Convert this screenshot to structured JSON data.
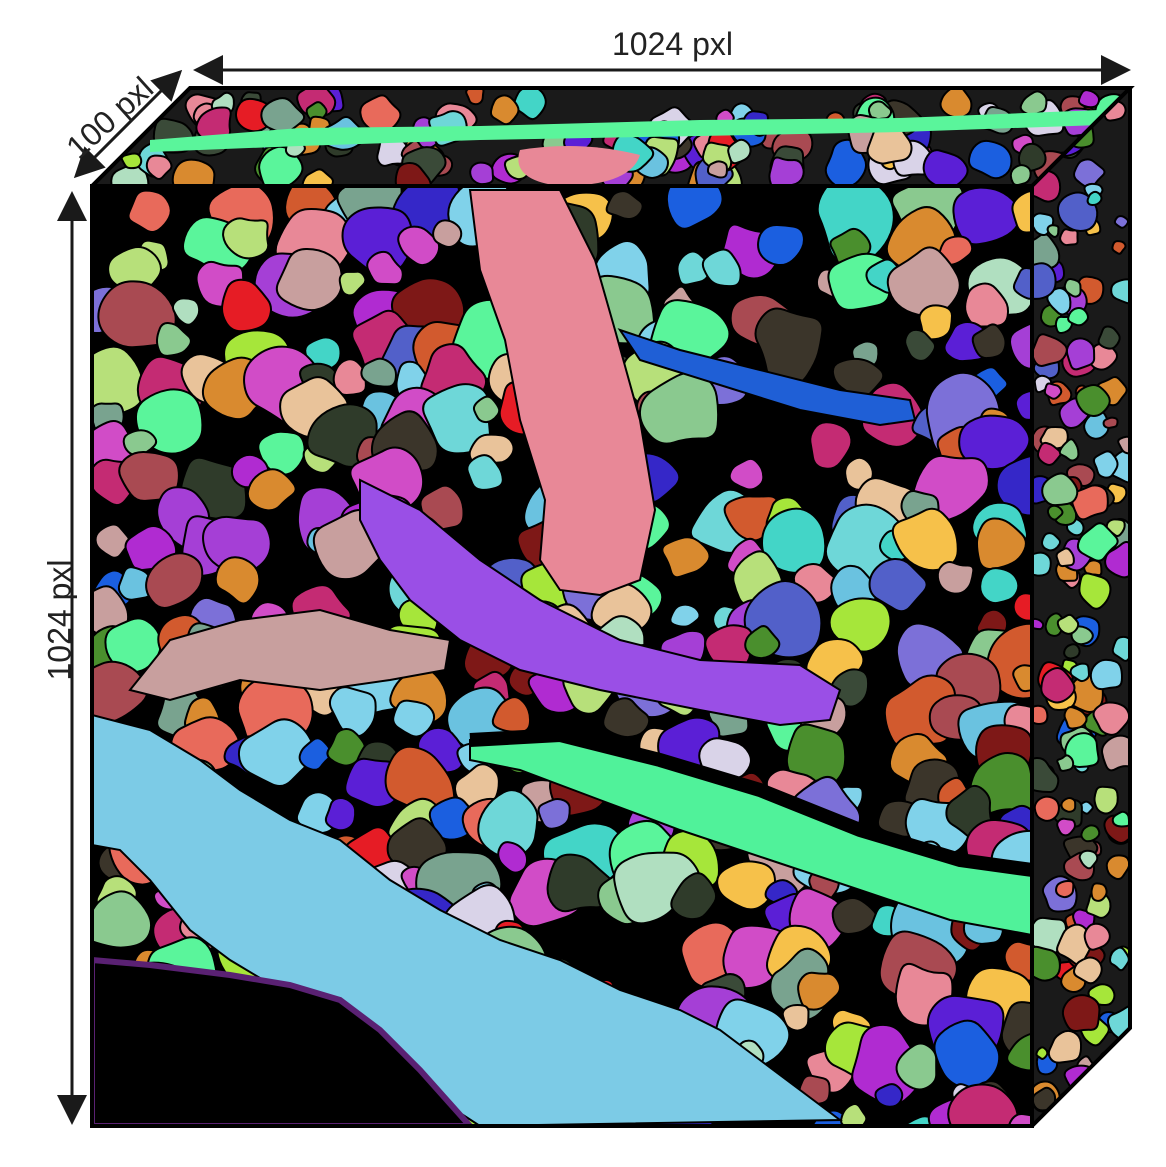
{
  "dimensions": {
    "width_label": "1024 pxl",
    "height_label": "1024 pxl",
    "depth_label": "100 pxl"
  },
  "colors": {
    "background_gap": "#000000",
    "outline": "#000000",
    "arrow": "#1a1a1a"
  },
  "figure": {
    "description_free": true,
    "palette": [
      "#5b1fd6",
      "#b7e07a",
      "#79a38f",
      "#2f3b2a",
      "#e9c39a",
      "#c42b73",
      "#d9d3e8",
      "#6ac2e0",
      "#e88897",
      "#a94a52",
      "#4a8f2d",
      "#e86a5b",
      "#d25a2e",
      "#8ac98f",
      "#1b5fe0",
      "#3b352a",
      "#7e1817",
      "#7c70d8",
      "#a53fd6",
      "#6ed7d8",
      "#5af59b",
      "#c89f9e",
      "#b02bd1",
      "#3527c8",
      "#b0dfc0",
      "#e61c25",
      "#d98a2f",
      "#f6c14a",
      "#5260c9",
      "#80d2ea",
      "#3a4a38",
      "#d14cc7",
      "#a6e63a",
      "#43d5c7"
    ]
  }
}
